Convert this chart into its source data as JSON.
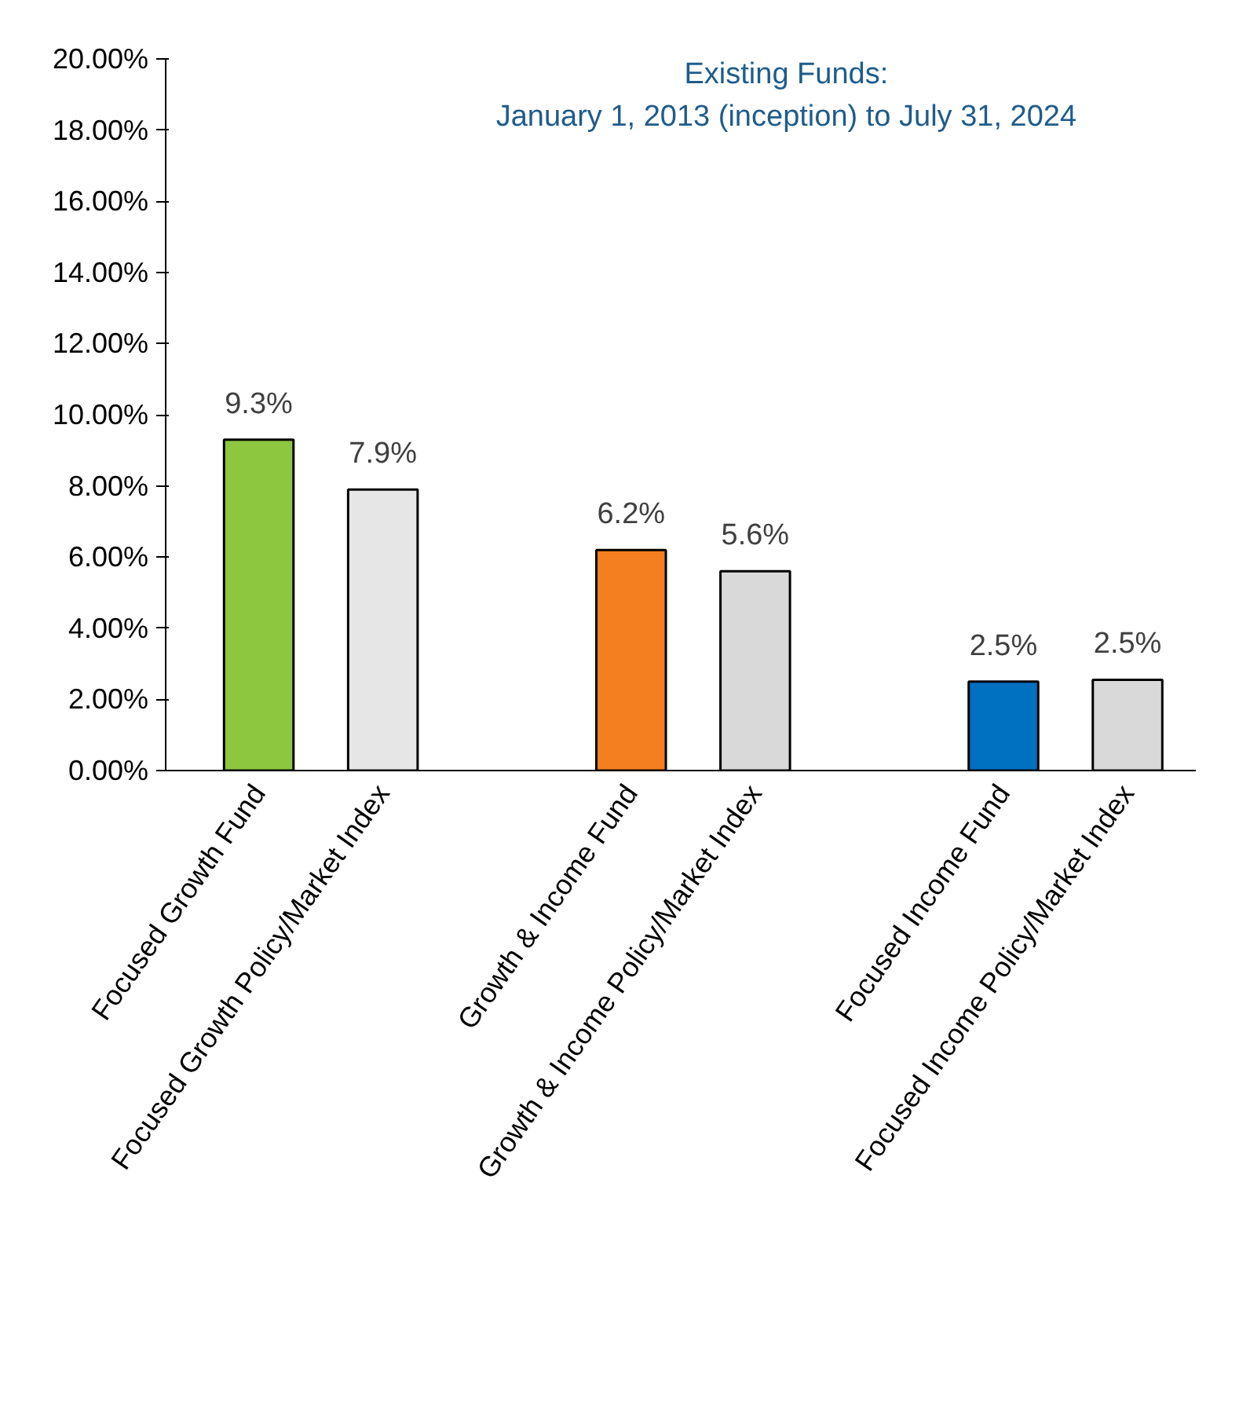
{
  "chart_data": {
    "type": "bar",
    "title": "Existing Funds:\nJanuary 1, 2013 (inception) to July 31, 2024",
    "categories": [
      "Focused Growth Fund",
      "Focused Growth Policy/Market Index",
      null,
      "Growth & Income Fund",
      "Growth & Income Policy/Market Index",
      null,
      "Focused Income Fund",
      "Focused Income Policy/Market Index"
    ],
    "values": [
      9.3,
      7.9,
      null,
      6.2,
      5.6,
      null,
      2.5,
      2.55
    ],
    "colors": [
      "#8dc63f",
      "#e6e6e6",
      "#ffffff",
      "#f47f20",
      "#d9d9d9",
      "#ffffff",
      "#0070c0",
      "#d9d9d9"
    ],
    "value_labels": [
      "9.3%",
      "7.9%",
      null,
      "6.2%",
      "5.6%",
      null,
      "2.5%",
      "2.5%"
    ],
    "ylim": [
      0,
      20
    ],
    "yticks": [
      {
        "value": 0,
        "label": "0.00%"
      },
      {
        "value": 2,
        "label": "2.00%"
      },
      {
        "value": 4,
        "label": "4.00%"
      },
      {
        "value": 6,
        "label": "6.00%"
      },
      {
        "value": 8,
        "label": "8.00%"
      },
      {
        "value": 10,
        "label": "10.00%"
      },
      {
        "value": 12,
        "label": "12.00%"
      },
      {
        "value": 14,
        "label": "14.00%"
      },
      {
        "value": 16,
        "label": "16.00%"
      },
      {
        "value": 18,
        "label": "18.00%"
      },
      {
        "value": 20,
        "label": "20.00%"
      }
    ],
    "grid": false
  }
}
